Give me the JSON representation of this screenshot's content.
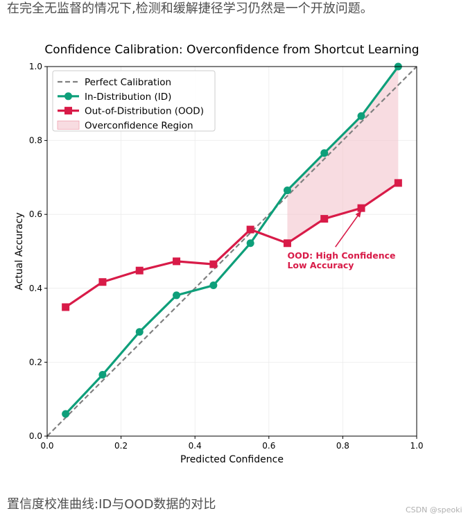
{
  "page": {
    "intro": "在完全无监督的情况下,检测和缓解捷径学习仍然是一个开放问题。",
    "caption": "置信度校准曲线:ID与OOD数据的对比",
    "watermark": "CSDN @speoki"
  },
  "chart_data": {
    "type": "line",
    "title": "Confidence Calibration: Overconfidence from Shortcut Learning",
    "xlabel": "Predicted Confidence",
    "ylabel": "Actual Accuracy",
    "xlim": [
      0.0,
      1.0
    ],
    "ylim": [
      0.0,
      1.0
    ],
    "xticks": [
      "0.0",
      "0.2",
      "0.4",
      "0.6",
      "0.8",
      "1.0"
    ],
    "yticks": [
      "0.0",
      "0.2",
      "0.4",
      "0.6",
      "0.8",
      "1.0"
    ],
    "x": [
      0.05,
      0.15,
      0.25,
      0.35,
      0.45,
      0.55,
      0.65,
      0.75,
      0.85,
      0.95
    ],
    "grid": true,
    "legend_position": "top-left",
    "reference": {
      "name": "Perfect Calibration",
      "x": [
        0.0,
        1.0
      ],
      "y": [
        0.0,
        1.0
      ],
      "color": "#808080"
    },
    "series": [
      {
        "name": "In-Distribution (ID)",
        "marker": "circle",
        "color": "#0e9f7a",
        "values": [
          0.06,
          0.166,
          0.282,
          0.381,
          0.408,
          0.522,
          0.665,
          0.766,
          0.866,
          1.0
        ]
      },
      {
        "name": "Out-of-Distribution (OOD)",
        "marker": "square",
        "color": "#d81b48",
        "values": [
          0.349,
          0.417,
          0.448,
          0.473,
          0.465,
          0.559,
          0.522,
          0.588,
          0.617,
          0.685
        ]
      }
    ],
    "region": {
      "name": "Overconfidence Region",
      "x_from": 0.65,
      "x_to": 0.95,
      "color": "#f4c4cd"
    },
    "annotation": {
      "lines": [
        "OOD: High Confidence",
        "Low Accuracy"
      ],
      "text_x": 0.65,
      "text_y": 0.48,
      "arrow_to_x": 0.85,
      "arrow_to_y": 0.617,
      "color": "#d81b48"
    }
  }
}
